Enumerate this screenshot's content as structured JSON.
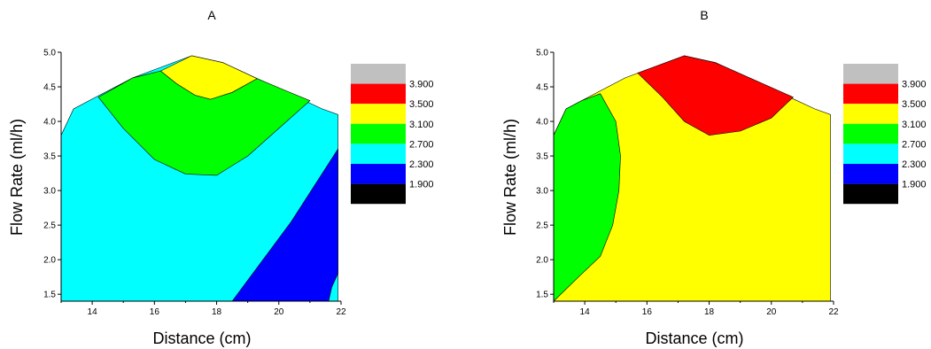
{
  "panels": [
    {
      "title": "A",
      "xlabel": "Distance (cm)",
      "ylabel": "Flow Rate (ml/h)",
      "x_ticks": [
        "14",
        "16",
        "18",
        "20",
        "22"
      ],
      "y_ticks": [
        "1.5",
        "2.0",
        "2.5",
        "3.0",
        "3.5",
        "4.0",
        "4.5",
        "5.0"
      ]
    },
    {
      "title": "B",
      "xlabel": "Distance (cm)",
      "ylabel": "Flow Rate (ml/h)",
      "x_ticks": [
        "14",
        "16",
        "18",
        "20",
        "22"
      ],
      "y_ticks": [
        "1.5",
        "2.0",
        "2.5",
        "3.0",
        "3.5",
        "4.0",
        "4.5",
        "5.0"
      ]
    }
  ],
  "legend": {
    "levels": [
      "3.900",
      "3.500",
      "3.100",
      "2.700",
      "2.300",
      "1.900"
    ],
    "colors": [
      "#c0c0c0",
      "#ff0000",
      "#ffff00",
      "#00ff00",
      "#00ffff",
      "#0000ff",
      "#000000"
    ]
  },
  "chart_data": [
    {
      "type": "contour",
      "title": "A",
      "xlabel": "Distance (cm)",
      "ylabel": "Flow Rate (ml/h)",
      "xlim": [
        13,
        22
      ],
      "ylim": [
        1.4,
        5.0
      ],
      "levels": [
        1.9,
        2.3,
        2.7,
        3.1,
        3.5,
        3.9
      ],
      "regions": [
        {
          "range": "2.3-2.7",
          "color": "#00ffff",
          "polygon": [
            [
              13,
              1.4
            ],
            [
              13,
              3.8
            ],
            [
              13.4,
              4.18
            ],
            [
              13.9,
              4.3
            ],
            [
              15.3,
              4.63
            ],
            [
              17.2,
              4.95
            ],
            [
              18.2,
              4.85
            ],
            [
              21.4,
              4.18
            ],
            [
              21.9,
              4.1
            ],
            [
              21.9,
              1.4
            ]
          ]
        },
        {
          "range": "2.7-3.1",
          "color": "#00ff00",
          "polygon": [
            [
              14.2,
              4.35
            ],
            [
              15.3,
              4.63
            ],
            [
              16.2,
              4.73
            ],
            [
              16.7,
              4.55
            ],
            [
              17.3,
              4.38
            ],
            [
              17.8,
              4.32
            ],
            [
              18.5,
              4.42
            ],
            [
              19.3,
              4.62
            ],
            [
              20.3,
              4.43
            ],
            [
              21.0,
              4.3
            ],
            [
              20.0,
              3.9
            ],
            [
              19.0,
              3.5
            ],
            [
              18.0,
              3.22
            ],
            [
              17.0,
              3.24
            ],
            [
              16.0,
              3.45
            ],
            [
              15.0,
              3.9
            ]
          ]
        },
        {
          "range": "3.1-3.5",
          "color": "#ffff00",
          "polygon": [
            [
              16.2,
              4.73
            ],
            [
              17.2,
              4.95
            ],
            [
              18.2,
              4.85
            ],
            [
              19.3,
              4.62
            ],
            [
              18.5,
              4.42
            ],
            [
              17.8,
              4.32
            ],
            [
              17.3,
              4.38
            ],
            [
              16.7,
              4.55
            ]
          ]
        },
        {
          "range": "1.9-2.3",
          "color": "#0000ff",
          "polygon": [
            [
              18.5,
              1.4
            ],
            [
              20.4,
              2.55
            ],
            [
              21.9,
              3.6
            ],
            [
              21.9,
              1.8
            ],
            [
              21.7,
              1.6
            ],
            [
              21.6,
              1.4
            ]
          ]
        }
      ]
    },
    {
      "type": "contour",
      "title": "B",
      "xlabel": "Distance (cm)",
      "ylabel": "Flow Rate (ml/h)",
      "xlim": [
        13,
        22
      ],
      "ylim": [
        1.4,
        5.0
      ],
      "levels": [
        1.9,
        2.3,
        2.7,
        3.1,
        3.5,
        3.9
      ],
      "regions": [
        {
          "range": "3.1-3.5",
          "color": "#ffff00",
          "polygon": [
            [
              13,
              1.4
            ],
            [
              13,
              3.8
            ],
            [
              13.4,
              4.18
            ],
            [
              13.9,
              4.3
            ],
            [
              15.3,
              4.63
            ],
            [
              17.2,
              4.95
            ],
            [
              18.2,
              4.85
            ],
            [
              21.4,
              4.18
            ],
            [
              21.9,
              4.1
            ],
            [
              21.9,
              1.4
            ]
          ]
        },
        {
          "range": "3.5-3.9",
          "color": "#ff0000",
          "polygon": [
            [
              15.7,
              4.7
            ],
            [
              17.2,
              4.95
            ],
            [
              18.2,
              4.85
            ],
            [
              20.7,
              4.35
            ],
            [
              20.0,
              4.05
            ],
            [
              19.0,
              3.86
            ],
            [
              18.0,
              3.8
            ],
            [
              17.2,
              4.0
            ],
            [
              16.5,
              4.35
            ]
          ]
        },
        {
          "range": "2.7-3.1",
          "color": "#00ff00",
          "polygon": [
            [
              13,
              1.4
            ],
            [
              13,
              3.8
            ],
            [
              13.4,
              4.18
            ],
            [
              13.9,
              4.3
            ],
            [
              14.5,
              4.4
            ],
            [
              15.0,
              4.0
            ],
            [
              15.15,
              3.5
            ],
            [
              15.1,
              3.0
            ],
            [
              14.9,
              2.5
            ],
            [
              14.5,
              2.05
            ],
            [
              13.8,
              1.75
            ]
          ]
        }
      ]
    }
  ]
}
